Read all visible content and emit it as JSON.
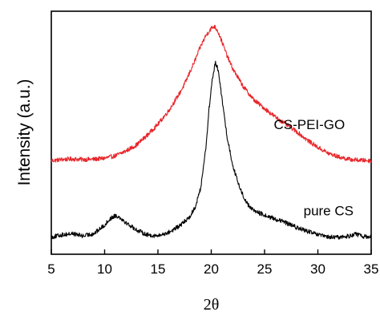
{
  "chart_data": {
    "type": "line",
    "title": "",
    "xlabel": "2θ",
    "ylabel": "Intensity (a.u.)",
    "xlim": [
      5,
      35
    ],
    "ylim": [
      0,
      100
    ],
    "y_tick_labels_shown": false,
    "grid": false,
    "x_ticks": [
      5,
      10,
      15,
      20,
      25,
      30,
      35
    ],
    "series": [
      {
        "name": "CS-PEI-GO",
        "color": "#e8262b",
        "x": [
          5.0,
          6.0,
          7.0,
          8.0,
          9.0,
          10.0,
          11.0,
          12.0,
          13.0,
          14.0,
          15.0,
          16.0,
          17.0,
          17.5,
          18.0,
          18.5,
          19.0,
          19.5,
          20.0,
          20.3,
          20.6,
          21.0,
          21.5,
          22.0,
          23.0,
          24.0,
          25.0,
          26.0,
          27.0,
          28.0,
          29.0,
          30.0,
          31.0,
          32.0,
          33.0,
          34.0,
          35.0
        ],
        "y": [
          38.5,
          39.0,
          39.2,
          39.0,
          39.1,
          39.5,
          40.5,
          42.5,
          45.0,
          49.0,
          53.5,
          59.0,
          66.0,
          70.0,
          75.0,
          80.0,
          85.5,
          90.0,
          93.0,
          93.8,
          92.0,
          87.5,
          81.5,
          76.5,
          69.0,
          63.5,
          60.0,
          56.5,
          53.5,
          50.5,
          47.0,
          44.0,
          41.5,
          40.0,
          39.0,
          38.7,
          38.5
        ]
      },
      {
        "name": "pure CS",
        "color": "#000000",
        "x": [
          5.0,
          6.0,
          7.0,
          8.0,
          9.0,
          10.0,
          10.5,
          11.0,
          11.5,
          12.0,
          13.0,
          14.0,
          15.0,
          16.0,
          17.0,
          18.0,
          18.5,
          19.0,
          19.5,
          19.8,
          20.1,
          20.4,
          20.7,
          21.0,
          21.5,
          22.0,
          22.5,
          23.0,
          23.5,
          24.0,
          25.0,
          26.0,
          27.0,
          28.0,
          29.0,
          30.0,
          31.0,
          32.0,
          33.0,
          33.5,
          34.0,
          35.0
        ],
        "y": [
          7.0,
          8.0,
          8.5,
          7.5,
          8.5,
          12.0,
          14.5,
          16.0,
          15.0,
          13.0,
          10.0,
          8.0,
          7.5,
          9.0,
          11.5,
          15.5,
          19.5,
          27.0,
          44.0,
          60.0,
          72.0,
          79.0,
          75.0,
          64.0,
          48.0,
          37.0,
          29.5,
          24.0,
          20.0,
          18.0,
          16.0,
          14.5,
          13.0,
          11.0,
          9.5,
          8.0,
          7.0,
          7.0,
          7.5,
          8.5,
          7.5,
          7.0
        ]
      }
    ]
  }
}
